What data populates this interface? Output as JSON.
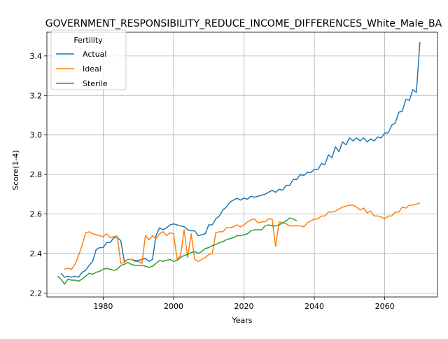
{
  "chart_data": {
    "type": "line",
    "title": "GOVERNMENT_RESPONSIBILITY_REDUCE_INCOME_DIFFERENCES_White_Male_BA",
    "xlabel": "Years",
    "ylabel": "Score(1-4)",
    "xlim": [
      1964,
      2075
    ],
    "ylim": [
      2.18,
      3.52
    ],
    "xticks": [
      1980,
      2000,
      2020,
      2040,
      2060
    ],
    "yticks": [
      2.2,
      2.4,
      2.6,
      2.8,
      3.0,
      3.2,
      3.4
    ],
    "ytick_labels": [
      "2.2",
      "2.4",
      "2.6",
      "2.8",
      "3.0",
      "3.2",
      "3.4"
    ],
    "grid": true,
    "legend": {
      "title": "Fertility",
      "placement": "top-left"
    },
    "series": [
      {
        "name": "Actual",
        "color": "#1f77b4",
        "points": [
          [
            1968,
            2.3
          ],
          [
            1969,
            2.28
          ],
          [
            1970,
            2.285
          ],
          [
            1971,
            2.28
          ],
          [
            1972,
            2.285
          ],
          [
            1973,
            2.28
          ],
          [
            1974,
            2.305
          ],
          [
            1975,
            2.315
          ],
          [
            1976,
            2.34
          ],
          [
            1977,
            2.36
          ],
          [
            1978,
            2.42
          ],
          [
            1979,
            2.43
          ],
          [
            1980,
            2.43
          ],
          [
            1981,
            2.455
          ],
          [
            1982,
            2.455
          ],
          [
            1983,
            2.48
          ],
          [
            1984,
            2.48
          ],
          [
            1985,
            2.465
          ],
          [
            1986,
            2.36
          ],
          [
            1987,
            2.37
          ],
          [
            1988,
            2.37
          ],
          [
            1989,
            2.365
          ],
          [
            1990,
            2.365
          ],
          [
            1991,
            2.37
          ],
          [
            1992,
            2.375
          ],
          [
            1993,
            2.36
          ],
          [
            1994,
            2.37
          ],
          [
            1995,
            2.49
          ],
          [
            1996,
            2.53
          ],
          [
            1997,
            2.52
          ],
          [
            1998,
            2.53
          ],
          [
            1999,
            2.545
          ],
          [
            2000,
            2.55
          ],
          [
            2001,
            2.545
          ],
          [
            2002,
            2.54
          ],
          [
            2003,
            2.535
          ],
          [
            2004,
            2.52
          ],
          [
            2005,
            2.515
          ],
          [
            2006,
            2.515
          ],
          [
            2007,
            2.49
          ],
          [
            2008,
            2.495
          ],
          [
            2009,
            2.5
          ],
          [
            2010,
            2.545
          ],
          [
            2011,
            2.545
          ],
          [
            2012,
            2.575
          ],
          [
            2013,
            2.59
          ],
          [
            2014,
            2.62
          ],
          [
            2015,
            2.635
          ],
          [
            2016,
            2.66
          ],
          [
            2017,
            2.67
          ],
          [
            2018,
            2.68
          ],
          [
            2019,
            2.67
          ],
          [
            2020,
            2.68
          ],
          [
            2021,
            2.675
          ],
          [
            2022,
            2.69
          ],
          [
            2023,
            2.685
          ],
          [
            2024,
            2.69
          ],
          [
            2025,
            2.695
          ],
          [
            2026,
            2.7
          ],
          [
            2027,
            2.71
          ],
          [
            2028,
            2.72
          ],
          [
            2029,
            2.71
          ],
          [
            2030,
            2.725
          ],
          [
            2031,
            2.72
          ],
          [
            2032,
            2.745
          ],
          [
            2033,
            2.745
          ],
          [
            2034,
            2.775
          ],
          [
            2035,
            2.775
          ],
          [
            2036,
            2.8
          ],
          [
            2037,
            2.795
          ],
          [
            2038,
            2.81
          ],
          [
            2039,
            2.81
          ],
          [
            2040,
            2.825
          ],
          [
            2041,
            2.825
          ],
          [
            2042,
            2.855
          ],
          [
            2043,
            2.85
          ],
          [
            2044,
            2.9
          ],
          [
            2045,
            2.885
          ],
          [
            2046,
            2.94
          ],
          [
            2047,
            2.915
          ],
          [
            2048,
            2.965
          ],
          [
            2049,
            2.95
          ],
          [
            2050,
            2.985
          ],
          [
            2051,
            2.97
          ],
          [
            2052,
            2.985
          ],
          [
            2053,
            2.97
          ],
          [
            2054,
            2.985
          ],
          [
            2055,
            2.965
          ],
          [
            2056,
            2.98
          ],
          [
            2057,
            2.97
          ],
          [
            2058,
            2.99
          ],
          [
            2059,
            2.985
          ],
          [
            2060,
            3.01
          ],
          [
            2061,
            3.01
          ],
          [
            2062,
            3.05
          ],
          [
            2063,
            3.06
          ],
          [
            2064,
            3.115
          ],
          [
            2065,
            3.12
          ],
          [
            2066,
            3.18
          ],
          [
            2067,
            3.175
          ],
          [
            2068,
            3.23
          ],
          [
            2069,
            3.215
          ],
          [
            2070,
            3.47
          ]
        ]
      },
      {
        "name": "Ideal",
        "color": "#ff7f0e",
        "points": [
          [
            1969,
            2.32
          ],
          [
            1970,
            2.325
          ],
          [
            1971,
            2.32
          ],
          [
            1972,
            2.345
          ],
          [
            1973,
            2.39
          ],
          [
            1974,
            2.44
          ],
          [
            1975,
            2.505
          ],
          [
            1976,
            2.51
          ],
          [
            1977,
            2.5
          ],
          [
            1978,
            2.495
          ],
          [
            1979,
            2.49
          ],
          [
            1980,
            2.485
          ],
          [
            1981,
            2.5
          ],
          [
            1982,
            2.48
          ],
          [
            1983,
            2.485
          ],
          [
            1984,
            2.49
          ],
          [
            1985,
            2.35
          ],
          [
            1986,
            2.355
          ],
          [
            1987,
            2.37
          ],
          [
            1988,
            2.37
          ],
          [
            1989,
            2.36
          ],
          [
            1990,
            2.36
          ],
          [
            1991,
            2.35
          ],
          [
            1992,
            2.49
          ],
          [
            1993,
            2.47
          ],
          [
            1994,
            2.49
          ],
          [
            1995,
            2.475
          ],
          [
            1996,
            2.5
          ],
          [
            1997,
            2.51
          ],
          [
            1998,
            2.49
          ],
          [
            1999,
            2.505
          ],
          [
            2000,
            2.5
          ],
          [
            2001,
            2.37
          ],
          [
            2002,
            2.39
          ],
          [
            2003,
            2.52
          ],
          [
            2004,
            2.38
          ],
          [
            2005,
            2.5
          ],
          [
            2006,
            2.37
          ],
          [
            2007,
            2.36
          ],
          [
            2008,
            2.37
          ],
          [
            2009,
            2.38
          ],
          [
            2010,
            2.395
          ],
          [
            2011,
            2.4
          ],
          [
            2012,
            2.505
          ],
          [
            2013,
            2.51
          ],
          [
            2014,
            2.51
          ],
          [
            2015,
            2.53
          ],
          [
            2016,
            2.53
          ],
          [
            2017,
            2.535
          ],
          [
            2018,
            2.545
          ],
          [
            2019,
            2.535
          ],
          [
            2020,
            2.545
          ],
          [
            2021,
            2.56
          ],
          [
            2022,
            2.57
          ],
          [
            2023,
            2.575
          ],
          [
            2024,
            2.555
          ],
          [
            2025,
            2.56
          ],
          [
            2026,
            2.56
          ],
          [
            2027,
            2.575
          ],
          [
            2028,
            2.575
          ],
          [
            2029,
            2.435
          ],
          [
            2030,
            2.56
          ],
          [
            2031,
            2.555
          ],
          [
            2032,
            2.55
          ],
          [
            2033,
            2.54
          ],
          [
            2034,
            2.54
          ],
          [
            2035,
            2.54
          ],
          [
            2036,
            2.54
          ],
          [
            2037,
            2.535
          ],
          [
            2038,
            2.555
          ],
          [
            2039,
            2.565
          ],
          [
            2040,
            2.575
          ],
          [
            2041,
            2.575
          ],
          [
            2042,
            2.59
          ],
          [
            2043,
            2.59
          ],
          [
            2044,
            2.61
          ],
          [
            2045,
            2.61
          ],
          [
            2046,
            2.615
          ],
          [
            2047,
            2.625
          ],
          [
            2048,
            2.635
          ],
          [
            2049,
            2.64
          ],
          [
            2050,
            2.645
          ],
          [
            2051,
            2.645
          ],
          [
            2052,
            2.635
          ],
          [
            2053,
            2.62
          ],
          [
            2054,
            2.63
          ],
          [
            2055,
            2.605
          ],
          [
            2056,
            2.615
          ],
          [
            2057,
            2.59
          ],
          [
            2058,
            2.59
          ],
          [
            2059,
            2.585
          ],
          [
            2060,
            2.575
          ],
          [
            2061,
            2.59
          ],
          [
            2062,
            2.59
          ],
          [
            2063,
            2.61
          ],
          [
            2064,
            2.61
          ],
          [
            2065,
            2.635
          ],
          [
            2066,
            2.63
          ],
          [
            2067,
            2.645
          ],
          [
            2068,
            2.645
          ],
          [
            2069,
            2.65
          ],
          [
            2070,
            2.655
          ]
        ]
      },
      {
        "name": "Sterile",
        "color": "#2ca02c",
        "points": [
          [
            1967,
            2.285
          ],
          [
            1968,
            2.27
          ],
          [
            1969,
            2.245
          ],
          [
            1970,
            2.27
          ],
          [
            1971,
            2.265
          ],
          [
            1972,
            2.265
          ],
          [
            1973,
            2.26
          ],
          [
            1974,
            2.27
          ],
          [
            1975,
            2.285
          ],
          [
            1976,
            2.3
          ],
          [
            1977,
            2.295
          ],
          [
            1978,
            2.305
          ],
          [
            1979,
            2.31
          ],
          [
            1980,
            2.32
          ],
          [
            1981,
            2.325
          ],
          [
            1982,
            2.32
          ],
          [
            1983,
            2.315
          ],
          [
            1984,
            2.32
          ],
          [
            1985,
            2.34
          ],
          [
            1986,
            2.345
          ],
          [
            1987,
            2.355
          ],
          [
            1988,
            2.345
          ],
          [
            1989,
            2.34
          ],
          [
            1990,
            2.34
          ],
          [
            1991,
            2.34
          ],
          [
            1992,
            2.335
          ],
          [
            1993,
            2.33
          ],
          [
            1994,
            2.335
          ],
          [
            1995,
            2.35
          ],
          [
            1996,
            2.365
          ],
          [
            1997,
            2.36
          ],
          [
            1998,
            2.365
          ],
          [
            1999,
            2.37
          ],
          [
            2000,
            2.36
          ],
          [
            2001,
            2.365
          ],
          [
            2002,
            2.38
          ],
          [
            2003,
            2.39
          ],
          [
            2004,
            2.395
          ],
          [
            2005,
            2.405
          ],
          [
            2006,
            2.41
          ],
          [
            2007,
            2.4
          ],
          [
            2008,
            2.41
          ],
          [
            2009,
            2.425
          ],
          [
            2010,
            2.43
          ],
          [
            2011,
            2.44
          ],
          [
            2012,
            2.445
          ],
          [
            2013,
            2.455
          ],
          [
            2014,
            2.46
          ],
          [
            2015,
            2.47
          ],
          [
            2016,
            2.475
          ],
          [
            2017,
            2.48
          ],
          [
            2018,
            2.49
          ],
          [
            2019,
            2.49
          ],
          [
            2020,
            2.495
          ],
          [
            2021,
            2.5
          ],
          [
            2022,
            2.515
          ],
          [
            2023,
            2.52
          ],
          [
            2024,
            2.52
          ],
          [
            2025,
            2.52
          ],
          [
            2026,
            2.54
          ],
          [
            2027,
            2.545
          ],
          [
            2028,
            2.54
          ],
          [
            2029,
            2.54
          ],
          [
            2030,
            2.545
          ],
          [
            2031,
            2.555
          ],
          [
            2032,
            2.565
          ],
          [
            2033,
            2.58
          ],
          [
            2034,
            2.575
          ],
          [
            2035,
            2.565
          ]
        ]
      }
    ]
  }
}
